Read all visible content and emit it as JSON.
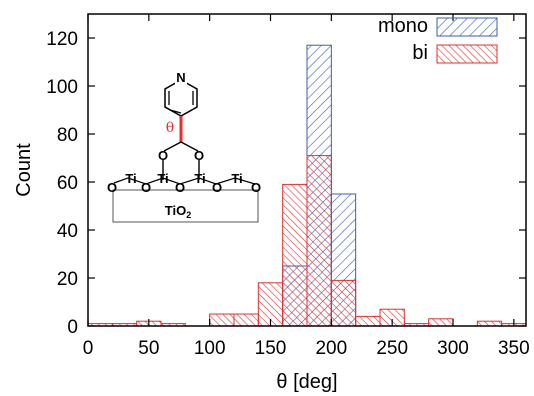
{
  "chart_data": {
    "type": "bar",
    "xlabel": "θ [deg]",
    "ylabel": "Count",
    "xlim": [
      0,
      360
    ],
    "ylim": [
      0,
      130
    ],
    "bin_width": 20,
    "xticks": [
      0,
      50,
      100,
      150,
      200,
      250,
      300,
      350
    ],
    "yticks": [
      0,
      20,
      40,
      60,
      80,
      100,
      120
    ],
    "legend_position": "top-right",
    "grid": false,
    "series": [
      {
        "name": "mono",
        "color": "#3a5fb0",
        "pattern": "diagonal-hatch-forward",
        "bins": [
          {
            "x": 160,
            "value": 25
          },
          {
            "x": 180,
            "value": 117
          },
          {
            "x": 200,
            "value": 55
          }
        ]
      },
      {
        "name": "bi",
        "color": "#e03030",
        "pattern": "diagonal-hatch-backward",
        "bins": [
          {
            "x": 0,
            "value": 1
          },
          {
            "x": 20,
            "value": 1
          },
          {
            "x": 40,
            "value": 2
          },
          {
            "x": 60,
            "value": 1
          },
          {
            "x": 100,
            "value": 5
          },
          {
            "x": 120,
            "value": 5
          },
          {
            "x": 140,
            "value": 18
          },
          {
            "x": 160,
            "value": 59
          },
          {
            "x": 180,
            "value": 71
          },
          {
            "x": 200,
            "value": 19
          },
          {
            "x": 220,
            "value": 4
          },
          {
            "x": 240,
            "value": 7
          },
          {
            "x": 260,
            "value": 1
          },
          {
            "x": 280,
            "value": 3
          },
          {
            "x": 320,
            "value": 2
          },
          {
            "x": 340,
            "value": 1
          }
        ]
      }
    ]
  },
  "inset": {
    "ring_atom": "N",
    "angle_symbol": "θ",
    "oxygen": "O",
    "titanium": "Ti",
    "substrate_main": "TiO",
    "substrate_sub": "2"
  }
}
